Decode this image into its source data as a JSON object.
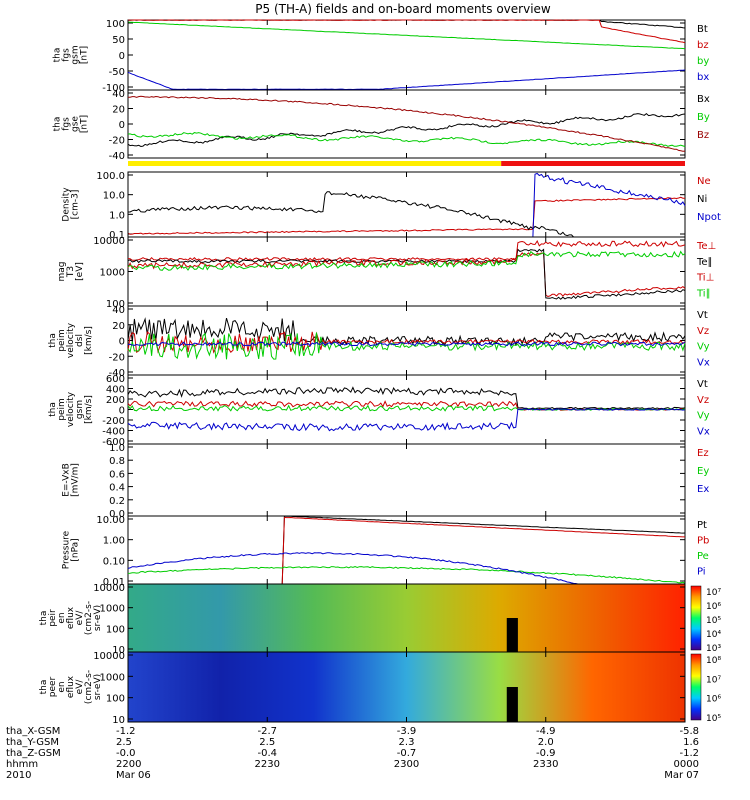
{
  "chart_data": {
    "type": "line",
    "title": "P5 (TH-A) fields and on-board moments overview",
    "date_start": "Mar 06",
    "date_end": "Mar 07",
    "year": "2010",
    "x_ticks": [
      {
        "label": "2200",
        "x": "-1.2",
        "y": "2.5",
        "z": "-0.0"
      },
      {
        "label": "2230",
        "x": "-2.7",
        "y": "2.5",
        "z": "-0.4"
      },
      {
        "label": "2300",
        "x": "-3.9",
        "y": "2.3",
        "z": "-0.7"
      },
      {
        "label": "2330",
        "x": "-4.9",
        "y": "2.0",
        "z": "-0.9"
      },
      {
        "label": "0000",
        "x": "-5.8",
        "y": "1.6",
        "z": "-1.2"
      }
    ],
    "footer_rows": [
      "tha_X-GSM",
      "tha_Y-GSM",
      "tha_Z-GSM",
      "hhmm",
      "2010"
    ],
    "panels": [
      {
        "id": "fgs_gsm",
        "ylabel": [
          "tha",
          "fgs",
          "gsm",
          "[nT]"
        ],
        "ticks": [
          "100",
          "50",
          "0",
          "-50",
          "-100"
        ],
        "ylim": [
          -100,
          100
        ],
        "series": [
          {
            "name": "Bt",
            "color": "#000000"
          },
          {
            "name": "bz",
            "color": "#cc0000"
          },
          {
            "name": "by",
            "color": "#00cc00"
          },
          {
            "name": "bx",
            "color": "#0000cc"
          }
        ]
      },
      {
        "id": "fgs_dsl",
        "ylabel": [
          "tha",
          "fgs",
          "gse",
          "[nT]"
        ],
        "ticks": [
          "40",
          "20",
          "0",
          "-20",
          "-40"
        ],
        "ylim": [
          -45,
          45
        ],
        "series": [
          {
            "name": "Bx",
            "color": "#000000"
          },
          {
            "name": "By",
            "color": "#00cc00"
          },
          {
            "name": "Bz",
            "color": "#990000"
          }
        ]
      },
      {
        "id": "density",
        "ylabel": [
          "Density",
          "[cm-3]"
        ],
        "ticks": [
          "100.0",
          "10.0",
          "1.0",
          "0.1"
        ],
        "log": true,
        "series": [
          {
            "name": "Ne",
            "color": "#cc0000"
          },
          {
            "name": "Ni",
            "color": "#000000"
          },
          {
            "name": "Npot",
            "color": "#0000cc"
          }
        ]
      },
      {
        "id": "temp",
        "ylabel": [
          "mag",
          "T3",
          "[eV]"
        ],
        "ticks": [
          "10000",
          "1000",
          "100"
        ],
        "log": true,
        "series": [
          {
            "name": "Te⊥",
            "color": "#cc0000"
          },
          {
            "name": "Te∥",
            "color": "#000000"
          },
          {
            "name": "Ti⊥",
            "color": "#cc0000"
          },
          {
            "name": "Ti∥",
            "color": "#00cc00"
          }
        ]
      },
      {
        "id": "velocity_dsl",
        "ylabel": [
          "tha",
          "peim",
          "velocity",
          "dsl",
          "[km/s]"
        ],
        "ticks": [
          "40",
          "20",
          "0",
          "-20",
          "-40"
        ],
        "ylim": [
          -45,
          45
        ],
        "series": [
          {
            "name": "Vt",
            "color": "#000000"
          },
          {
            "name": "Vz",
            "color": "#cc0000"
          },
          {
            "name": "Vy",
            "color": "#00cc00"
          },
          {
            "name": "Vx",
            "color": "#0000cc"
          }
        ]
      },
      {
        "id": "velocity_gsm",
        "ylabel": [
          "tha",
          "peim",
          "velocity",
          "gsm",
          "[km/s]"
        ],
        "ticks": [
          "600",
          "400",
          "200",
          "0",
          "-200",
          "-400",
          "-600"
        ],
        "ylim": [
          -650,
          650
        ],
        "series": [
          {
            "name": "Vt",
            "color": "#000000"
          },
          {
            "name": "Vz",
            "color": "#cc0000"
          },
          {
            "name": "Vy",
            "color": "#00cc00"
          },
          {
            "name": "Vx",
            "color": "#0000cc"
          }
        ]
      },
      {
        "id": "efield",
        "ylabel": [
          "E=-VxB",
          "[mV/m]"
        ],
        "ticks": [
          "1.0",
          "0.8",
          "0.6",
          "0.4",
          "0.2",
          "0.0"
        ],
        "ylim": [
          0,
          1
        ],
        "series": [
          {
            "name": "Ez",
            "color": "#cc0000"
          },
          {
            "name": "Ey",
            "color": "#00cc00"
          },
          {
            "name": "Ex",
            "color": "#0000cc"
          }
        ]
      },
      {
        "id": "pressure",
        "ylabel": [
          "Pressure",
          "[nPa]"
        ],
        "ticks": [
          "10.00",
          "1.00",
          "0.10",
          "0.01"
        ],
        "log": true,
        "series": [
          {
            "name": "Pt",
            "color": "#000000"
          },
          {
            "name": "Pb",
            "color": "#cc0000"
          },
          {
            "name": "Pe",
            "color": "#00cc00"
          },
          {
            "name": "Pi",
            "color": "#0000cc"
          }
        ]
      },
      {
        "id": "ion_spec",
        "ylabel": [
          "tha",
          "peir",
          "en",
          "eflux",
          "eV/",
          "(cm2-s-",
          "sr-eV)"
        ],
        "ticks": [
          "10000",
          "1000",
          "100",
          "10"
        ],
        "log": true,
        "colorbar": [
          "10⁷",
          "10⁶",
          "10⁵",
          "10⁴",
          "10³"
        ]
      },
      {
        "id": "elec_spec",
        "ylabel": [
          "tha",
          "peer",
          "en",
          "eflux",
          "eV/",
          "(cm2-s-",
          "sr-eV)"
        ],
        "ticks": [
          "10000",
          "1000",
          "100",
          "10"
        ],
        "log": true,
        "colorbar": [
          "10⁸",
          "10⁷",
          "10⁶",
          "10⁵"
        ]
      }
    ],
    "mode_bar": {
      "colors": [
        "#ffee00",
        "#ee1111"
      ],
      "switch_fraction": 0.67
    }
  }
}
